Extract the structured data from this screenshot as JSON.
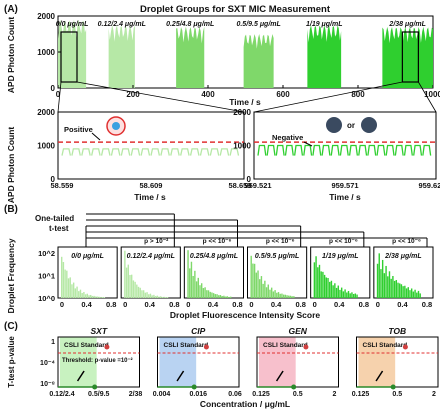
{
  "panel_labels": [
    "(A)",
    "(B)",
    "(C)"
  ],
  "colors": {
    "green_light": "#b6e8a6",
    "green_mid": "#7fd86a",
    "green_dark": "#2fcf2f",
    "threshold_red": "#e03030",
    "csli_green": "#c8f2c0",
    "csli_blue": "#b9d3f2",
    "csli_pink": "#f7c0cc",
    "csli_orange": "#f6d2ad"
  },
  "chart_data": [
    {
      "id": "A_top",
      "type": "area",
      "title": "Droplet Groups for SXT MIC Measurement",
      "xlabel": "Time / s",
      "ylabel": "APD Photon Count",
      "xlim": [
        0,
        1000
      ],
      "ylim": [
        0,
        2000
      ],
      "xticks": [
        "0",
        "200",
        "400",
        "600",
        "800",
        "1000"
      ],
      "yticks": [
        "0",
        "1000",
        "2000"
      ],
      "groups": [
        {
          "label": "0/0 μg/mL",
          "x_start": 0,
          "x_end": 75,
          "peak": 1900
        },
        {
          "label": "0.12/2.4 μg/mL",
          "x_start": 135,
          "x_end": 205,
          "peak": 1750
        },
        {
          "label": "0.25/4.8 μg/mL",
          "x_start": 315,
          "x_end": 390,
          "peak": 1700
        },
        {
          "label": "0.5/9.5 μg/mL",
          "x_start": 495,
          "x_end": 575,
          "peak": 1500
        },
        {
          "label": "1/19 μg/mL",
          "x_start": 665,
          "x_end": 755,
          "peak": 1750
        },
        {
          "label": "2/38 μg/mL",
          "x_start": 865,
          "x_end": 1000,
          "peak": 1700
        }
      ]
    },
    {
      "id": "A_zoom_left",
      "type": "line",
      "xlabel": "Time / s",
      "ylabel": "APD Photon Count",
      "xlim": [
        58.559,
        58.659
      ],
      "ylim": [
        0,
        2000
      ],
      "xticks": [
        "58.559",
        "58.609",
        "58.659"
      ],
      "yticks": [
        "0",
        "1000",
        "2000"
      ],
      "threshold": 1100,
      "annotation": "Positive"
    },
    {
      "id": "A_zoom_right",
      "type": "line",
      "xlabel": "Time / s",
      "xlim": [
        959.521,
        959.621
      ],
      "ylim": [
        0,
        2000
      ],
      "xticks": [
        "959.521",
        "959.571",
        "959.621"
      ],
      "yticks": [
        "0",
        "1000",
        "2000"
      ],
      "threshold": 1100,
      "annotation": "Negative",
      "or_text": "or"
    },
    {
      "id": "B",
      "type": "bar",
      "xlabel": "Droplet Fluorescence Intensity Score",
      "ylabel": "Droplet Frequency",
      "yticks": [
        "10^0",
        "10^1",
        "10^2"
      ],
      "xticks": [
        "0",
        "0.4",
        "0.8"
      ],
      "ttest_label_1": "One-tailed",
      "ttest_label_2": "t-test",
      "panels": [
        {
          "label": "0/0 μg/mL",
          "decay": 0.1,
          "pval": ""
        },
        {
          "label": "0.12/2.4 μg/mL",
          "decay": 0.1,
          "pval": "p > 10⁻²"
        },
        {
          "label": "0.25/4.8 μg/mL",
          "decay": 0.09,
          "pval": "p << 10⁻⁶"
        },
        {
          "label": "0.5/9.5 μg/mL",
          "decay": 0.08,
          "pval": "p << 10⁻⁶"
        },
        {
          "label": "1/19 μg/mL",
          "decay": 0.06,
          "pval": "p << 10⁻⁶"
        },
        {
          "label": "2/38 μg/mL",
          "decay": 0.05,
          "pval": "p << 10⁻⁶"
        }
      ]
    },
    {
      "id": "C",
      "type": "scatter",
      "ylabel": "T-test p-value",
      "xlabel": "Concentration / μg/mL",
      "yticks": [
        "1",
        "10⁻⁴",
        "10⁻⁸"
      ],
      "threshold_label": "Threshold: p-value =10⁻²",
      "csli_label": "CSLI Standard",
      "panels": [
        {
          "title": "SXT",
          "xticks": [
            "0.12/2.4",
            "0.5/9.5",
            "2/38"
          ],
          "csli_color": "#c8f2c0"
        },
        {
          "title": "CIP",
          "xticks": [
            "0.004",
            "0.016",
            "0.06"
          ],
          "csli_color": "#b9d3f2"
        },
        {
          "title": "GEN",
          "xticks": [
            "0.125",
            "0.5",
            "2"
          ],
          "csli_color": "#f7c0cc"
        },
        {
          "title": "TOB",
          "xticks": [
            "0.125",
            "0.5",
            "2"
          ],
          "csli_color": "#f6d2ad"
        }
      ]
    }
  ]
}
